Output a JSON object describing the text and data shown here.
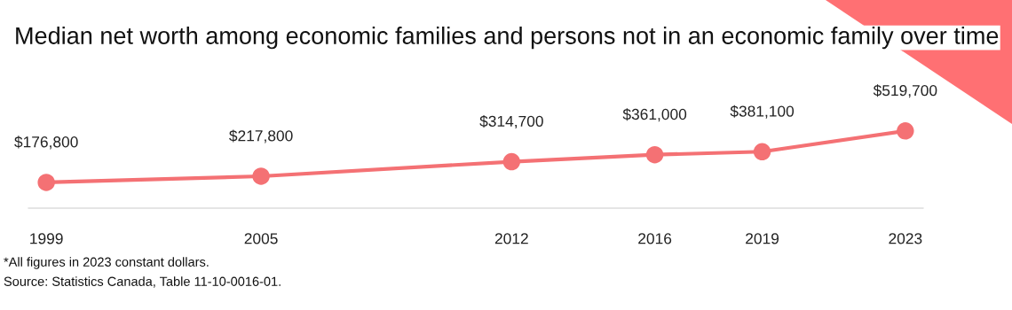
{
  "chart_data": {
    "type": "line",
    "title": "Median net worth among economic families and persons not in an economic family over time",
    "x": [
      1999,
      2005,
      2012,
      2016,
      2019,
      2023
    ],
    "series": [
      {
        "color": "#f47174",
        "values": [
          176800,
          217800,
          314700,
          361000,
          381100,
          519700
        ],
        "value_labels": [
          "$176,800",
          "$217,800",
          "$314,700",
          "$361,000",
          "$381,100",
          "$519,700"
        ]
      }
    ],
    "xlim": [
      1998.5,
      2023.5
    ],
    "xticks": [
      1999,
      2005,
      2012,
      2016,
      2019,
      2023
    ],
    "tick_labels": "x",
    "marker": "circle",
    "grid": false,
    "legend": false,
    "annotations": [
      "*All figures in 2023 constant dollars.",
      "Source: Statistics Canada, Table 11-10-0016-01."
    ]
  }
}
